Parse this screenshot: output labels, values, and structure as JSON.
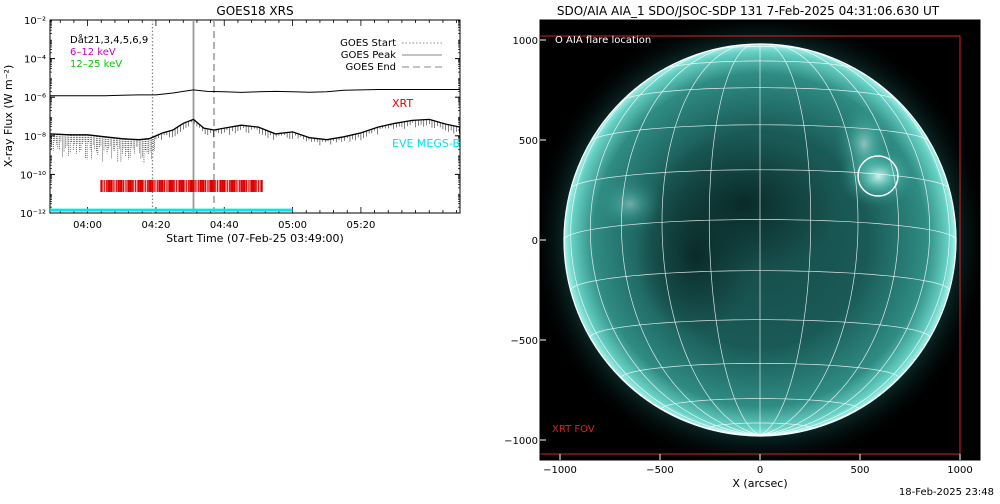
{
  "goes_chart": {
    "title": "GOES18 XRS",
    "ylabel": "X-ray Flux (W m⁻²)",
    "xlabel": "Start Time (07-Feb-25 03:49:00)",
    "y_log": true,
    "ylim_exp": [
      -12,
      -2
    ],
    "y_ticks": [
      "10⁻¹²",
      "10⁻¹⁰",
      "10⁻⁸",
      "10⁻⁶",
      "10⁻⁴",
      "10⁻²"
    ],
    "x_range_min": [
      -11,
      109
    ],
    "x_ticks": [
      {
        "label": "04:00",
        "min": 0
      },
      {
        "label": "04:20",
        "min": 20
      },
      {
        "label": "04:40",
        "min": 40
      },
      {
        "label": "05:00",
        "min": 60
      },
      {
        "label": "05:20",
        "min": 80
      }
    ],
    "legend_top_left": [
      {
        "text": "Dåt21,3,4,5,6,9",
        "color": "#000000"
      },
      {
        "text": "6–12 keV",
        "color": "#cc00cc"
      },
      {
        "text": "12–25 keV",
        "color": "#00cc00"
      }
    ],
    "legend_top_right": [
      {
        "text": "GOES Start",
        "style": "dotted"
      },
      {
        "text": "GOES Peak",
        "style": "solid"
      },
      {
        "text": "GOES End",
        "style": "dashed"
      }
    ],
    "markers": {
      "start_min": 19,
      "peak_min": 31,
      "end_min": 37
    },
    "labels": {
      "xrt": "XRT",
      "eve": "EVE MEGS-B"
    },
    "xrt_range_min": [
      4,
      51
    ],
    "eve_range_min": [
      -11,
      60
    ],
    "colors": {
      "xrt": "#dd0000",
      "eve": "#00e5ee",
      "legend_purple": "#cc00cc",
      "legend_green": "#00cc00"
    }
  },
  "chart_data": [
    {
      "type": "line",
      "title": "GOES18 XRS",
      "xlabel": "Start Time (07-Feb-25 03:49:00)",
      "ylabel": "X-ray Flux (W m⁻²)",
      "ylim": [
        1e-12,
        0.01
      ],
      "series": [
        {
          "name": "",
          "x_min": [
            -11,
            -5,
            0,
            5,
            10,
            15,
            20,
            25,
            28,
            31,
            35,
            40,
            45,
            50,
            55,
            60,
            65,
            70,
            75,
            80,
            85,
            90,
            95,
            100,
            105,
            109
          ],
          "log10_flux": [
            -5.92,
            -5.92,
            -5.92,
            -5.92,
            -5.9,
            -5.88,
            -5.88,
            -5.78,
            -5.7,
            -5.62,
            -5.7,
            -5.72,
            -5.75,
            -5.72,
            -5.7,
            -5.72,
            -5.74,
            -5.72,
            -5.64,
            -5.62,
            -5.6,
            -5.6,
            -5.6,
            -5.6,
            -5.6,
            -5.6
          ]
        },
        {
          "name": "",
          "x_min": [
            -11,
            -5,
            0,
            5,
            10,
            15,
            18,
            22,
            25,
            28,
            31,
            34,
            37,
            40,
            45,
            50,
            55,
            60,
            65,
            70,
            75,
            80,
            85,
            90,
            95,
            100,
            105,
            109
          ],
          "log10_flux": [
            -7.9,
            -7.95,
            -7.95,
            -8.05,
            -8.15,
            -8.2,
            -8.15,
            -7.85,
            -7.7,
            -7.35,
            -7.15,
            -7.6,
            -7.7,
            -7.6,
            -7.45,
            -7.55,
            -7.9,
            -7.8,
            -8.1,
            -8.2,
            -8.05,
            -7.85,
            -7.55,
            -7.35,
            -7.2,
            -7.15,
            -7.4,
            -7.55
          ]
        }
      ]
    },
    {
      "type": "scatter",
      "title": "SDO/AIA AIA_1 SDO/JSOC-SDP 131  7-Feb-2025 04:31:06.630 UT",
      "xlabel": "X (arcsec)",
      "ylabel": "",
      "xlim": [
        -1100,
        1100
      ],
      "ylim": [
        -1100,
        1100
      ],
      "x_ticks": [
        -1000,
        -500,
        0,
        500,
        1000
      ],
      "y_ticks": [
        -1000,
        -500,
        0,
        500,
        1000
      ],
      "flare_location": {
        "x": 590,
        "y": 320
      },
      "solar_radius": 980,
      "xrt_fov": {
        "x": [
          -1100,
          1000
        ],
        "y": [
          -1070,
          1020
        ]
      }
    }
  ],
  "aia_panel": {
    "title": "SDO/AIA AIA_1 SDO/JSOC-SDP 131  7-Feb-2025 04:31:06.630 UT",
    "xlabel": "X (arcsec)",
    "flare_legend": "O AIA flare location",
    "xrt_fov_label": "XRT FOV",
    "x_ticks": [
      "−1000",
      "−500",
      "0",
      "500",
      "1000"
    ],
    "y_ticks": [
      "1000",
      "500",
      "0",
      "−500",
      "−1000"
    ],
    "colors": {
      "disk": "#1f6f6a",
      "limb": "#9ff0e8",
      "fov": "#dd2222",
      "flare": "#ffffff",
      "legend": "#ffffff"
    }
  },
  "footer": {
    "timestamp": "18-Feb-2025 23:48"
  }
}
